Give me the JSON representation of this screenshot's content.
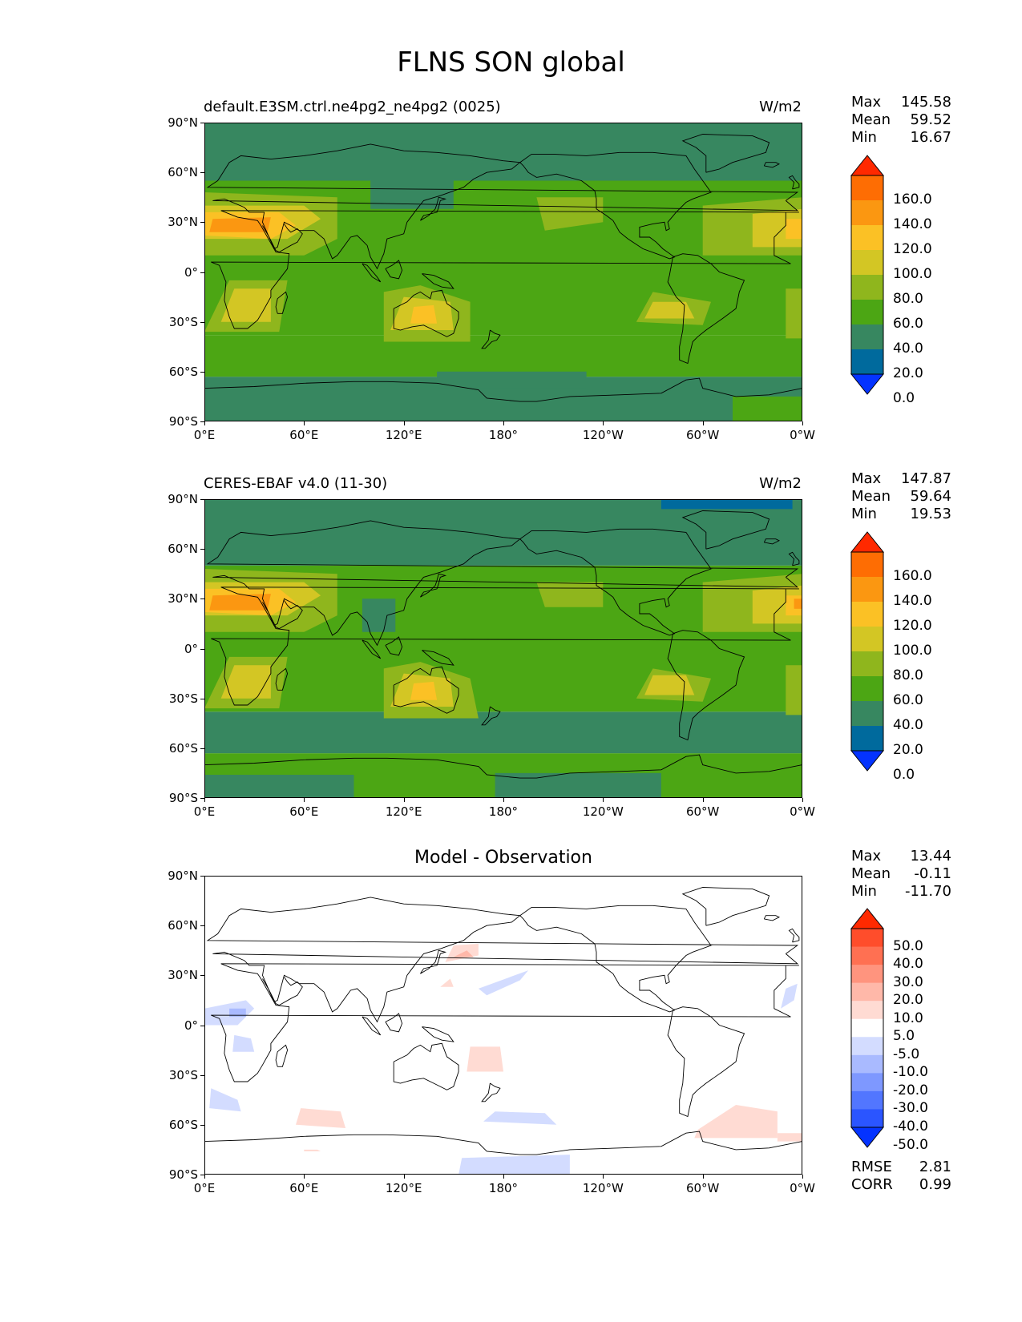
{
  "title": "FLNS SON global",
  "axes": {
    "lat_ticks": [
      "90°N",
      "60°N",
      "30°N",
      "0°",
      "30°S",
      "60°S",
      "90°S"
    ],
    "lon_ticks": [
      "0°E",
      "60°E",
      "120°E",
      "180°",
      "120°W",
      "60°W",
      "0°W"
    ]
  },
  "panels": [
    {
      "title_left": "default.E3SM.ctrl.ne4pg2_ne4pg2 (0025)",
      "units": "W/m2",
      "title_center": "",
      "stats": [
        {
          "label": "Max",
          "value": "145.58"
        },
        {
          "label": "Mean",
          "value": "59.52"
        },
        {
          "label": "Min",
          "value": "16.67"
        }
      ],
      "colorbar_labels": [
        "160.0",
        "140.0",
        "120.0",
        "100.0",
        "80.0",
        "60.0",
        "40.0",
        "20.0",
        "0.0"
      ],
      "extra_stats": []
    },
    {
      "title_left": "CERES-EBAF v4.0 (11-30)",
      "units": "W/m2",
      "title_center": "",
      "stats": [
        {
          "label": "Max",
          "value": "147.87"
        },
        {
          "label": "Mean",
          "value": "59.64"
        },
        {
          "label": "Min",
          "value": "19.53"
        }
      ],
      "colorbar_labels": [
        "160.0",
        "140.0",
        "120.0",
        "100.0",
        "80.0",
        "60.0",
        "40.0",
        "20.0",
        "0.0"
      ],
      "extra_stats": []
    },
    {
      "title_left": "",
      "units": "",
      "title_center": "Model - Observation",
      "stats": [
        {
          "label": "Max",
          "value": "13.44"
        },
        {
          "label": "Mean",
          "value": "-0.11"
        },
        {
          "label": "Min",
          "value": "-11.70"
        }
      ],
      "colorbar_labels": [
        "50.0",
        "40.0",
        "30.0",
        "20.0",
        "10.0",
        "5.0",
        "-5.0",
        "-10.0",
        "-20.0",
        "-30.0",
        "-40.0",
        "-50.0"
      ],
      "extra_stats": [
        {
          "label": "RMSE",
          "value": "2.81"
        },
        {
          "label": "CORR",
          "value": "0.99"
        }
      ]
    }
  ],
  "colors": {
    "field_levels": [
      "#0433ff",
      "#006a9d",
      "#378760",
      "#4ca614",
      "#8fb61d",
      "#d3c624",
      "#fbc125",
      "#fb9711",
      "#fe6d03",
      "#ff2900"
    ],
    "diff_levels": [
      "#0433ff",
      "#2b55ff",
      "#5276ff",
      "#7e98ff",
      "#a9baff",
      "#d3dcff",
      "#ffffff",
      "#ffdbd3",
      "#ffb8a9",
      "#ff947e",
      "#ff7052",
      "#ff4d2b",
      "#ff2900"
    ],
    "coastline": "#000000"
  }
}
